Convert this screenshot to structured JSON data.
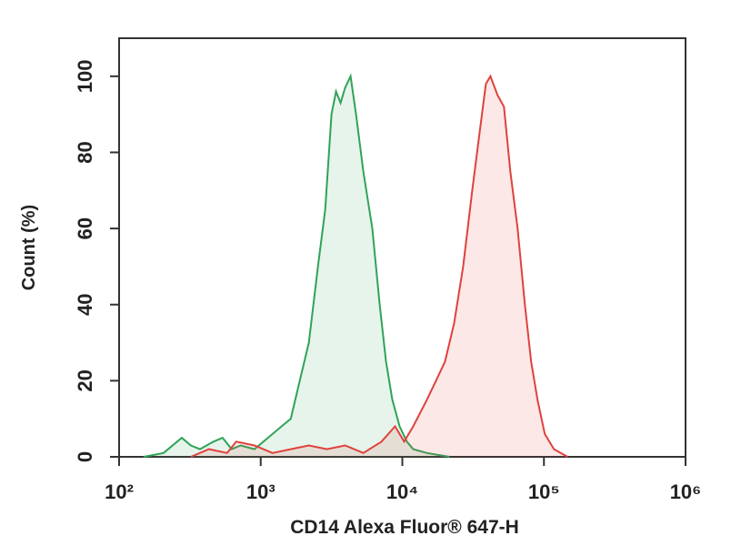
{
  "chart_data": {
    "type": "histogram-overlay",
    "xlabel": "CD14 Alexa Fluor® 647-H",
    "ylabel": "Count (%)",
    "xscale": "log",
    "xlim": [
      100,
      1000000
    ],
    "ylim": [
      0,
      110
    ],
    "xticks": [
      {
        "value": 100,
        "label": "10²"
      },
      {
        "value": 1000,
        "label": "10³"
      },
      {
        "value": 10000,
        "label": "10⁴"
      },
      {
        "value": 100000,
        "label": "10⁵"
      },
      {
        "value": 1000000,
        "label": "10⁶"
      }
    ],
    "yticks": [
      0,
      20,
      40,
      60,
      80,
      100
    ],
    "series": [
      {
        "color": "#2fa358",
        "x": [
          149,
          206,
          277,
          321,
          372,
          464,
          538,
          624,
          723,
          902,
          1125,
          1403,
          1629,
          1888,
          2188,
          2535,
          2853,
          3162,
          3404,
          3664,
          3945,
          4315,
          4710,
          5300,
          6140,
          6918,
          7674,
          8500,
          9570,
          10770,
          11940,
          14900,
          21540
        ],
        "values": [
          0,
          1,
          5,
          3,
          2,
          4,
          5,
          2,
          3,
          2,
          5,
          8,
          10,
          20,
          30,
          50,
          65,
          90,
          96,
          93,
          97,
          100,
          90,
          75,
          60,
          40,
          25,
          15,
          8,
          4,
          2,
          1,
          0
        ]
      },
      {
        "color": "#e0413c",
        "x": [
          321,
          431,
          579,
          671,
          902,
          1211,
          1629,
          2188,
          2938,
          3945,
          5300,
          7126,
          8886,
          10300,
          11940,
          14900,
          17270,
          20000,
          23190,
          26870,
          31190,
          35090,
          38900,
          41880,
          47100,
          52240,
          57940,
          65170,
          73320,
          81280,
          90160,
          101400,
          117700,
          146900
        ],
        "values": [
          0,
          2,
          1,
          4,
          3,
          1,
          2,
          3,
          2,
          3,
          1,
          4,
          8,
          4,
          8,
          15,
          20,
          25,
          35,
          50,
          70,
          85,
          98,
          100,
          95,
          92,
          75,
          60,
          40,
          25,
          15,
          6,
          2,
          0
        ]
      }
    ]
  }
}
